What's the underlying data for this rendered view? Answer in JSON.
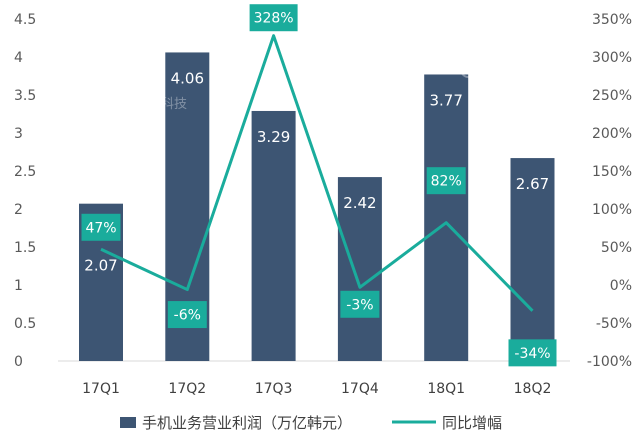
{
  "chart_data": {
    "type": "bar",
    "categories": [
      "17Q1",
      "17Q2",
      "17Q3",
      "17Q4",
      "18Q1",
      "18Q2"
    ],
    "series": [
      {
        "name": "手机业务营业利润（万亿韩元）",
        "type": "bar",
        "axis": "left",
        "values": [
          2.07,
          4.06,
          3.29,
          2.42,
          3.77,
          2.67
        ],
        "labels": [
          "2.07",
          "4.06",
          "3.29",
          "2.42",
          "3.77",
          "2.67"
        ]
      },
      {
        "name": "同比增幅",
        "type": "line",
        "axis": "right",
        "values": [
          47,
          -6,
          328,
          -3,
          82,
          -34
        ],
        "labels": [
          "47%",
          "-6%",
          "328%",
          "-3%",
          "82%",
          "-34%"
        ]
      }
    ],
    "y_left": {
      "ylim": [
        0,
        4.5
      ],
      "ticks": [
        "0",
        "0.5",
        "1",
        "1.5",
        "2",
        "2.5",
        "3",
        "3.5",
        "4",
        "4.5"
      ]
    },
    "y_right": {
      "ylim": [
        -100,
        350
      ],
      "ticks": [
        "-100%",
        "-50%",
        "0%",
        "50%",
        "100%",
        "150%",
        "200%",
        "250%",
        "300%",
        "350%"
      ]
    },
    "grid": false,
    "legend": "bottom",
    "colors": {
      "bar": "#3D5573",
      "line": "#1AAC9C",
      "label_box": "#1AAC9C"
    },
    "watermark": "腾讯科技"
  }
}
